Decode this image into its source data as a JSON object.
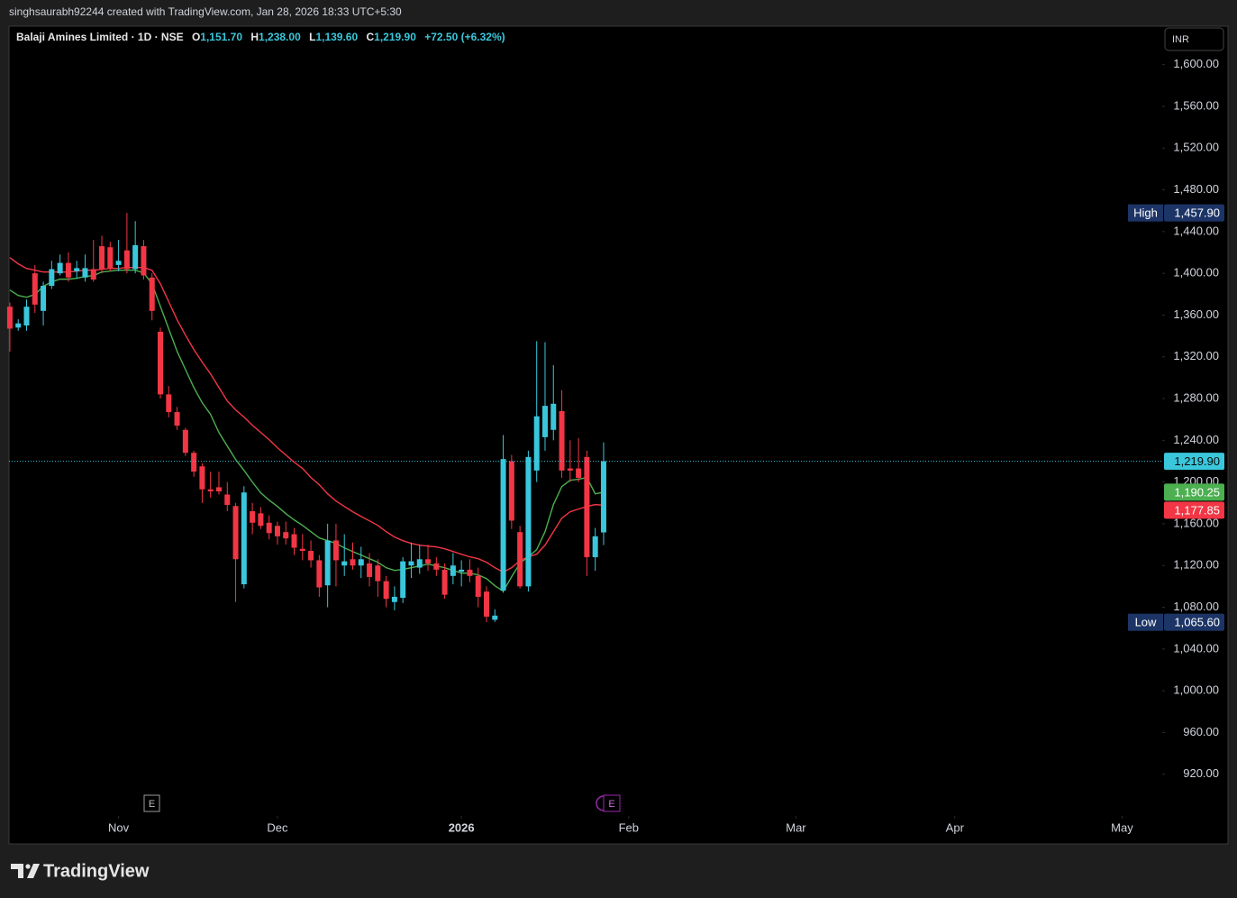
{
  "watermark": "singhsaurabh92244 created with TradingView.com, Jan 28, 2026 18:33 UTC+5:30",
  "brand": "TradingView",
  "chart_data": {
    "type": "candlestick",
    "title": "Balaji Amines Limited · 1D · NSE",
    "ohlc": [
      {
        "label": "O",
        "value": "1,151.70"
      },
      {
        "label": "H",
        "value": "1,238.00"
      },
      {
        "label": "L",
        "value": "1,139.60"
      },
      {
        "label": "C",
        "value": "1,219.90"
      }
    ],
    "change": "+72.50 (+6.32%)",
    "currency": "INR",
    "up_color": "#3ac7dc",
    "down_color": "#f23645",
    "candles": {
      "open": [
        1368,
        1348,
        1350,
        1400,
        1364,
        1388,
        1400,
        1410,
        1402,
        1396,
        1404,
        1426,
        1425,
        1408,
        1422,
        1404,
        1426,
        1396,
        1344,
        1284,
        1267,
        1250,
        1228,
        1215,
        1193,
        1195,
        1188,
        1177,
        1102,
        1172,
        1170,
        1161,
        1158,
        1152,
        1150,
        1136,
        1134,
        1125,
        1101,
        1144,
        1120,
        1126,
        1120,
        1122,
        1120,
        1105,
        1085,
        1089,
        1120,
        1118,
        1126,
        1122,
        1116,
        1110,
        1114,
        1116,
        1110,
        1095,
        1068,
        1096,
        1220,
        1152,
        1100,
        1211,
        1243,
        1250,
        1268,
        1213,
        1213,
        1224,
        1128,
        1151.7
      ],
      "high": [
        1372,
        1356,
        1375,
        1408,
        1392,
        1412,
        1418,
        1420,
        1412,
        1418,
        1432,
        1436,
        1430,
        1432,
        1457.9,
        1450,
        1432,
        1400,
        1348,
        1292,
        1272,
        1252,
        1230,
        1218,
        1210,
        1210,
        1200,
        1180,
        1196,
        1180,
        1176,
        1168,
        1162,
        1162,
        1156,
        1150,
        1144,
        1130,
        1160,
        1160,
        1150,
        1142,
        1138,
        1132,
        1126,
        1110,
        1100,
        1128,
        1142,
        1140,
        1140,
        1128,
        1122,
        1132,
        1125,
        1126,
        1118,
        1100,
        1078,
        1245,
        1226,
        1158,
        1230,
        1335,
        1334,
        1312,
        1288,
        1240,
        1242,
        1230,
        1156,
        1238
      ],
      "low": [
        1325,
        1345,
        1345,
        1362,
        1350,
        1385,
        1398,
        1392,
        1395,
        1392,
        1392,
        1400,
        1402,
        1402,
        1400,
        1400,
        1394,
        1355,
        1280,
        1262,
        1250,
        1225,
        1205,
        1180,
        1185,
        1188,
        1172,
        1085,
        1098,
        1150,
        1155,
        1145,
        1140,
        1140,
        1130,
        1125,
        1118,
        1090,
        1080,
        1100,
        1110,
        1116,
        1108,
        1100,
        1090,
        1080,
        1077,
        1084,
        1108,
        1112,
        1115,
        1110,
        1088,
        1102,
        1100,
        1104,
        1080,
        1065.6,
        1066,
        1094,
        1155,
        1098,
        1095,
        1200,
        1230,
        1240,
        1204,
        1200,
        1200,
        1110,
        1115,
        1139.6
      ],
      "close": [
        1347,
        1352,
        1368,
        1370,
        1388,
        1404,
        1410,
        1396,
        1405,
        1405,
        1394,
        1404,
        1405,
        1412,
        1404,
        1427,
        1398,
        1364,
        1284,
        1267,
        1254,
        1228,
        1210,
        1193,
        1191,
        1191,
        1178,
        1126,
        1190,
        1161,
        1158,
        1151,
        1148,
        1146,
        1137,
        1134,
        1125,
        1099,
        1144,
        1125,
        1124,
        1120,
        1126,
        1109,
        1105,
        1088,
        1090,
        1124,
        1124,
        1126,
        1122,
        1116,
        1092,
        1120,
        1116,
        1110,
        1090,
        1071,
        1072,
        1222,
        1163,
        1100,
        1224,
        1263,
        1273,
        1275,
        1211,
        1211,
        1204,
        1128,
        1148,
        1219.9
      ]
    },
    "series": [
      {
        "color": "#4caf50",
        "values": [
          1384.0,
          1378.8,
          1377.1,
          1379.7,
          1387.5,
          1391.8,
          1394.4,
          1394.4,
          1395.2,
          1397.0,
          1397.8,
          1401.3,
          1402.1,
          1403.0,
          1403.0,
          1403.0,
          1400.4,
          1390.0,
          1368.4,
          1346.8,
          1325.2,
          1307.9,
          1290.6,
          1276.0,
          1264.8,
          1247.5,
          1234.5,
          1221.6,
          1211.2,
          1200.0,
          1189.6,
          1182.7,
          1176.6,
          1169.7,
          1163.7,
          1158.5,
          1152.4,
          1146.4,
          1143.8,
          1141.2,
          1136.9,
          1133.4,
          1130.0,
          1126.5,
          1123.1,
          1117.9,
          1115.3,
          1116.2,
          1117.9,
          1119.6,
          1121.3,
          1119.6,
          1117.9,
          1115.3,
          1112.7,
          1112.7,
          1111.0,
          1107.5,
          1100.6,
          1095.4,
          1109.2,
          1122.2,
          1128.3,
          1135.2,
          1152.4,
          1178.4,
          1195.6,
          1201.7,
          1202.6,
          1204.3,
          1188.7,
          1190.25
        ]
      },
      {
        "color": "#f23645",
        "values": [
          1415.1,
          1409.1,
          1404.7,
          1403.0,
          1401.3,
          1401.3,
          1401.3,
          1401.3,
          1402.1,
          1403.0,
          1403.0,
          1403.9,
          1404.7,
          1404.7,
          1405.6,
          1405.6,
          1405.6,
          1403.0,
          1390.0,
          1372.8,
          1355.5,
          1340.8,
          1327.0,
          1314.9,
          1303.6,
          1290.6,
          1277.7,
          1269.1,
          1262.2,
          1254.4,
          1247.5,
          1240.6,
          1232.8,
          1225.9,
          1219.0,
          1213.0,
          1204.3,
          1197.4,
          1188.7,
          1181.8,
          1176.6,
          1171.5,
          1167.1,
          1162.8,
          1158.5,
          1152.4,
          1147.3,
          1143.8,
          1141.2,
          1139.5,
          1138.6,
          1137.8,
          1136.0,
          1133.4,
          1130.8,
          1128.3,
          1126.5,
          1123.1,
          1117.9,
          1113.6,
          1117.9,
          1124.8,
          1128.3,
          1130.8,
          1139.5,
          1152.4,
          1165.4,
          1171.5,
          1174.1,
          1176.6,
          1178.4,
          1177.85
        ]
      }
    ],
    "xlim": [
      -0.1,
      137.8
    ],
    "xticks": [
      {
        "value": 13,
        "label": "Nov"
      },
      {
        "value": 32,
        "label": "Dec"
      },
      {
        "value": 54,
        "label": "2026"
      },
      {
        "value": 74,
        "label": "Feb"
      },
      {
        "value": 94,
        "label": "Mar"
      },
      {
        "value": 113,
        "label": "Apr"
      },
      {
        "value": 133,
        "label": "May"
      }
    ],
    "ylim": [
      880,
      1636
    ],
    "yticks": [
      {
        "value": 920,
        "label": "920.00"
      },
      {
        "value": 960,
        "label": "960.00"
      },
      {
        "value": 1000,
        "label": "1,000.00"
      },
      {
        "value": 1040,
        "label": "1,040.00"
      },
      {
        "value": 1080,
        "label": "1,080.00"
      },
      {
        "value": 1120,
        "label": "1,120.00"
      },
      {
        "value": 1160,
        "label": "1,160.00"
      },
      {
        "value": 1200,
        "label": "1,200.00"
      },
      {
        "value": 1240,
        "label": "1,240.00"
      },
      {
        "value": 1280,
        "label": "1,280.00"
      },
      {
        "value": 1320,
        "label": "1,320.00"
      },
      {
        "value": 1360,
        "label": "1,360.00"
      },
      {
        "value": 1400,
        "label": "1,400.00"
      },
      {
        "value": 1440,
        "label": "1,440.00"
      },
      {
        "value": 1480,
        "label": "1,480.00"
      },
      {
        "value": 1520,
        "label": "1,520.00"
      },
      {
        "value": 1560,
        "label": "1,560.00"
      },
      {
        "value": 1600,
        "label": "1,600.00"
      }
    ],
    "grid": false,
    "price_marks": [
      {
        "label": "High",
        "value": 1457.9,
        "value_label": "1,457.90",
        "color": "#1c3566",
        "text_color": "#ffffff"
      },
      {
        "value": 1219.9,
        "value_label": "1,219.90",
        "color": "#3ac7dc",
        "text_color": "#0b0b0b"
      },
      {
        "value": 1190.25,
        "value_label": "1,190.25",
        "color": "#4caf50",
        "text_color": "#ffffff"
      },
      {
        "value": 1177.85,
        "value_label": "1,177.85",
        "color": "#f23645",
        "text_color": "#ffffff"
      },
      {
        "label": "Low",
        "value": 1065.6,
        "value_label": "1,065.60",
        "color": "#1c3566",
        "text_color": "#ffffff"
      }
    ],
    "earnings": [
      "E",
      "E"
    ]
  }
}
